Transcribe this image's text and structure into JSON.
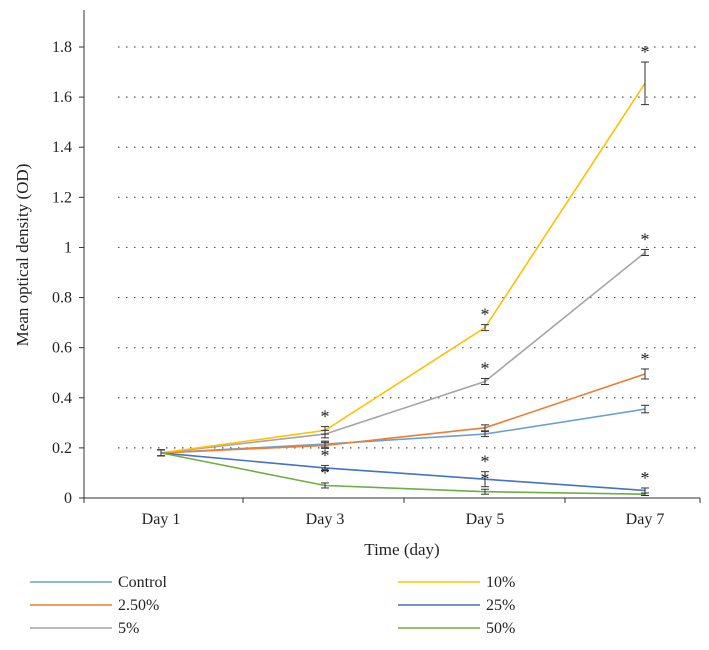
{
  "chart_data": {
    "type": "line",
    "xlabel": "Time (day)",
    "ylabel": "Mean optical density (OD)",
    "categories": [
      "Day 1",
      "Day 3",
      "Day 5",
      "Day 7"
    ],
    "ylim": [
      0,
      1.95
    ],
    "yticks": [
      0,
      0.2,
      0.4,
      0.6,
      0.8,
      1,
      1.2,
      1.4,
      1.6,
      1.8
    ],
    "ytick_labels": [
      "0",
      "0.2",
      "0.4",
      "0.6",
      "0.8",
      "1",
      "1.2",
      "1.4",
      "1.6",
      "1.8"
    ],
    "grid": "horizontal dotted",
    "legend_position": "bottom",
    "significance_marker": "*",
    "series": [
      {
        "name": "Control",
        "color": "#6f9fd0",
        "values": [
          0.18,
          0.215,
          0.255,
          0.355
        ],
        "errors": [
          0.012,
          0.012,
          0.01,
          0.015
        ],
        "stars": [
          false,
          false,
          false,
          false
        ]
      },
      {
        "name": "2.50%",
        "color": "#ed7d31",
        "values": [
          0.18,
          0.21,
          0.28,
          0.495
        ],
        "errors": [
          0.012,
          0.012,
          0.012,
          0.02
        ],
        "stars": [
          false,
          false,
          false,
          true
        ]
      },
      {
        "name": "5%",
        "color": "#a5a5a5",
        "values": [
          0.18,
          0.255,
          0.465,
          0.98
        ],
        "errors": [
          0.012,
          0.015,
          0.012,
          0.012
        ],
        "stars": [
          false,
          false,
          true,
          true
        ]
      },
      {
        "name": "10%",
        "color": "#ffc000",
        "values": [
          0.18,
          0.27,
          0.68,
          1.655
        ],
        "errors": [
          0.012,
          0.015,
          0.012,
          0.085
        ],
        "stars": [
          false,
          true,
          true,
          true
        ]
      },
      {
        "name": "25%",
        "color": "#4472c4",
        "values": [
          0.18,
          0.12,
          0.075,
          0.03
        ],
        "errors": [
          0.012,
          0.01,
          0.03,
          0.01
        ],
        "stars": [
          false,
          true,
          true,
          true
        ]
      },
      {
        "name": "50%",
        "color": "#70ad47",
        "values": [
          0.18,
          0.05,
          0.025,
          0.015
        ],
        "errors": [
          0.012,
          0.01,
          0.01,
          0.005
        ],
        "stars": [
          false,
          true,
          true,
          false
        ]
      }
    ]
  }
}
